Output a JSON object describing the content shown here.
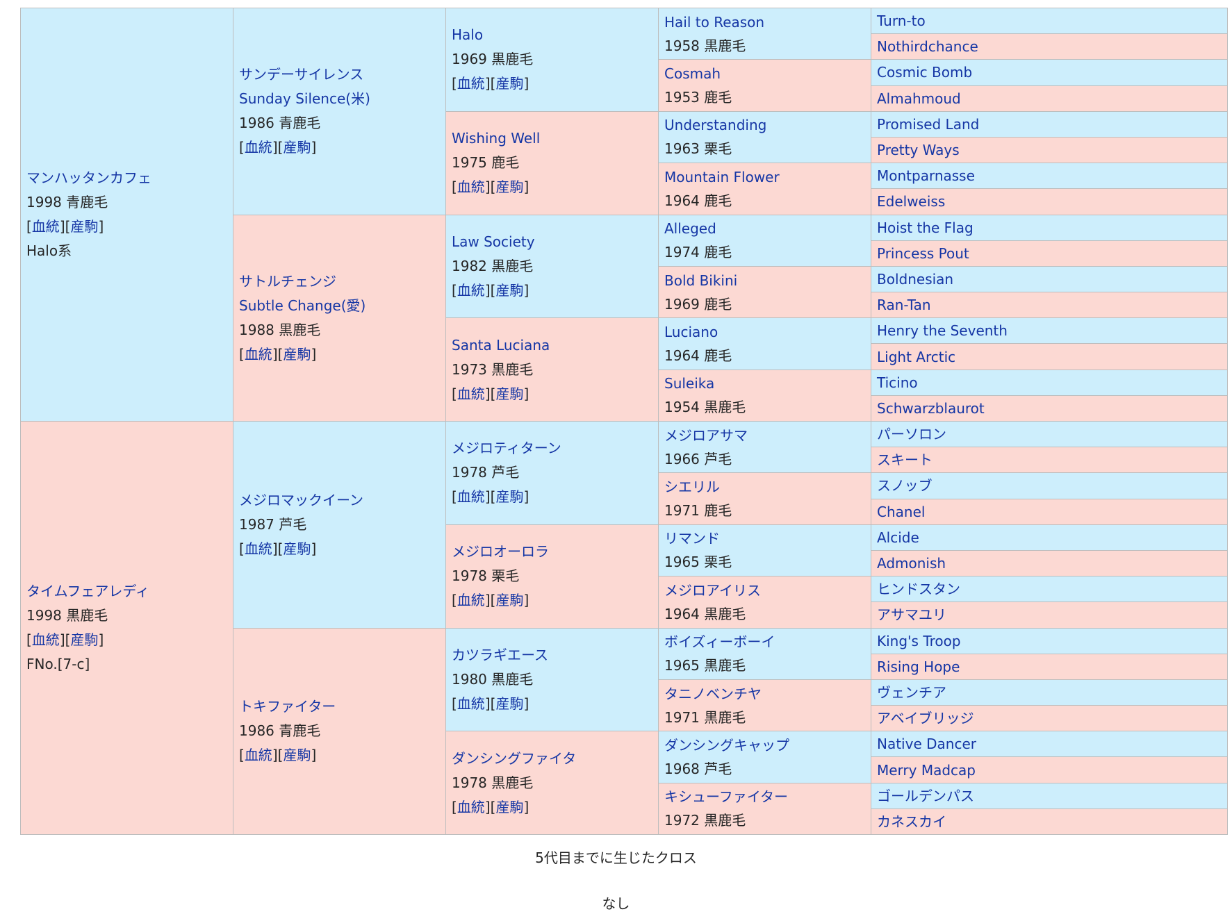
{
  "links": {
    "bloodline": "血統",
    "progeny": "産駒"
  },
  "pedigree": {
    "sire": {
      "name": "マンハッタンカフェ",
      "birth": "1998 青鹿毛",
      "note": "Halo系",
      "sire": {
        "name": "サンデーサイレンス",
        "alt": "Sunday Silence(米)",
        "birth": "1986 青鹿毛",
        "sire": {
          "name": "Halo",
          "birth": "1969 黒鹿毛",
          "sire": {
            "name": "Hail to Reason",
            "birth": "1958 黒鹿毛",
            "sire": "Turn-to",
            "dam": "Nothirdchance"
          },
          "dam": {
            "name": "Cosmah",
            "birth": "1953 鹿毛",
            "sire": "Cosmic Bomb",
            "dam": "Almahmoud"
          }
        },
        "dam": {
          "name": "Wishing Well",
          "birth": "1975 鹿毛",
          "sire": {
            "name": "Understanding",
            "birth": "1963 栗毛",
            "sire": "Promised Land",
            "dam": "Pretty Ways"
          },
          "dam": {
            "name": "Mountain Flower",
            "birth": "1964 鹿毛",
            "sire": "Montparnasse",
            "dam": "Edelweiss"
          }
        }
      },
      "dam": {
        "name": "サトルチェンジ",
        "alt": "Subtle Change(愛)",
        "birth": "1988 黒鹿毛",
        "sire": {
          "name": "Law Society",
          "birth": "1982 黒鹿毛",
          "sire": {
            "name": "Alleged",
            "birth": "1974 鹿毛",
            "sire": "Hoist the Flag",
            "dam": "Princess Pout"
          },
          "dam": {
            "name": "Bold Bikini",
            "birth": "1969 鹿毛",
            "sire": "Boldnesian",
            "dam": "Ran-Tan"
          }
        },
        "dam": {
          "name": "Santa Luciana",
          "birth": "1973 黒鹿毛",
          "sire": {
            "name": "Luciano",
            "birth": "1964 鹿毛",
            "sire": "Henry the Seventh",
            "dam": "Light Arctic"
          },
          "dam": {
            "name": "Suleika",
            "birth": "1954 黒鹿毛",
            "sire": "Ticino",
            "dam": "Schwarzblaurot"
          }
        }
      }
    },
    "dam": {
      "name": "タイムフェアレディ",
      "birth": "1998 黒鹿毛",
      "note": "FNo.[7-c]",
      "sire": {
        "name": "メジロマックイーン",
        "birth": "1987 芦毛",
        "sire": {
          "name": "メジロティターン",
          "birth": "1978 芦毛",
          "sire": {
            "name": "メジロアサマ",
            "birth": "1966 芦毛",
            "sire": "パーソロン",
            "dam": "スキート"
          },
          "dam": {
            "name": "シエリル",
            "birth": "1971 鹿毛",
            "sire": "スノッブ",
            "dam": "Chanel"
          }
        },
        "dam": {
          "name": "メジロオーロラ",
          "birth": "1978 栗毛",
          "sire": {
            "name": "リマンド",
            "birth": "1965 栗毛",
            "sire": "Alcide",
            "dam": "Admonish"
          },
          "dam": {
            "name": "メジロアイリス",
            "birth": "1964 黒鹿毛",
            "sire": "ヒンドスタン",
            "dam": "アサマユリ"
          }
        }
      },
      "dam": {
        "name": "トキファイター",
        "birth": "1986 青鹿毛",
        "sire": {
          "name": "カツラギエース",
          "birth": "1980 黒鹿毛",
          "sire": {
            "name": "ボイズィーボーイ",
            "birth": "1965 黒鹿毛",
            "sire": "King's Troop",
            "dam": "Rising Hope"
          },
          "dam": {
            "name": "タニノベンチヤ",
            "birth": "1971 黒鹿毛",
            "sire": "ヴェンチア",
            "dam": "アベイブリッジ"
          }
        },
        "dam": {
          "name": "ダンシングファイタ",
          "birth": "1978 黒鹿毛",
          "sire": {
            "name": "ダンシングキャップ",
            "birth": "1968 芦毛",
            "sire": "Native Dancer",
            "dam": "Merry Madcap"
          },
          "dam": {
            "name": "キシューファイター",
            "birth": "1972 黒鹿毛",
            "sire": "ゴールデンパス",
            "dam": "カネスカイ"
          }
        }
      }
    }
  },
  "cross": {
    "title": "5代目までに生じたクロス",
    "value": "なし"
  }
}
